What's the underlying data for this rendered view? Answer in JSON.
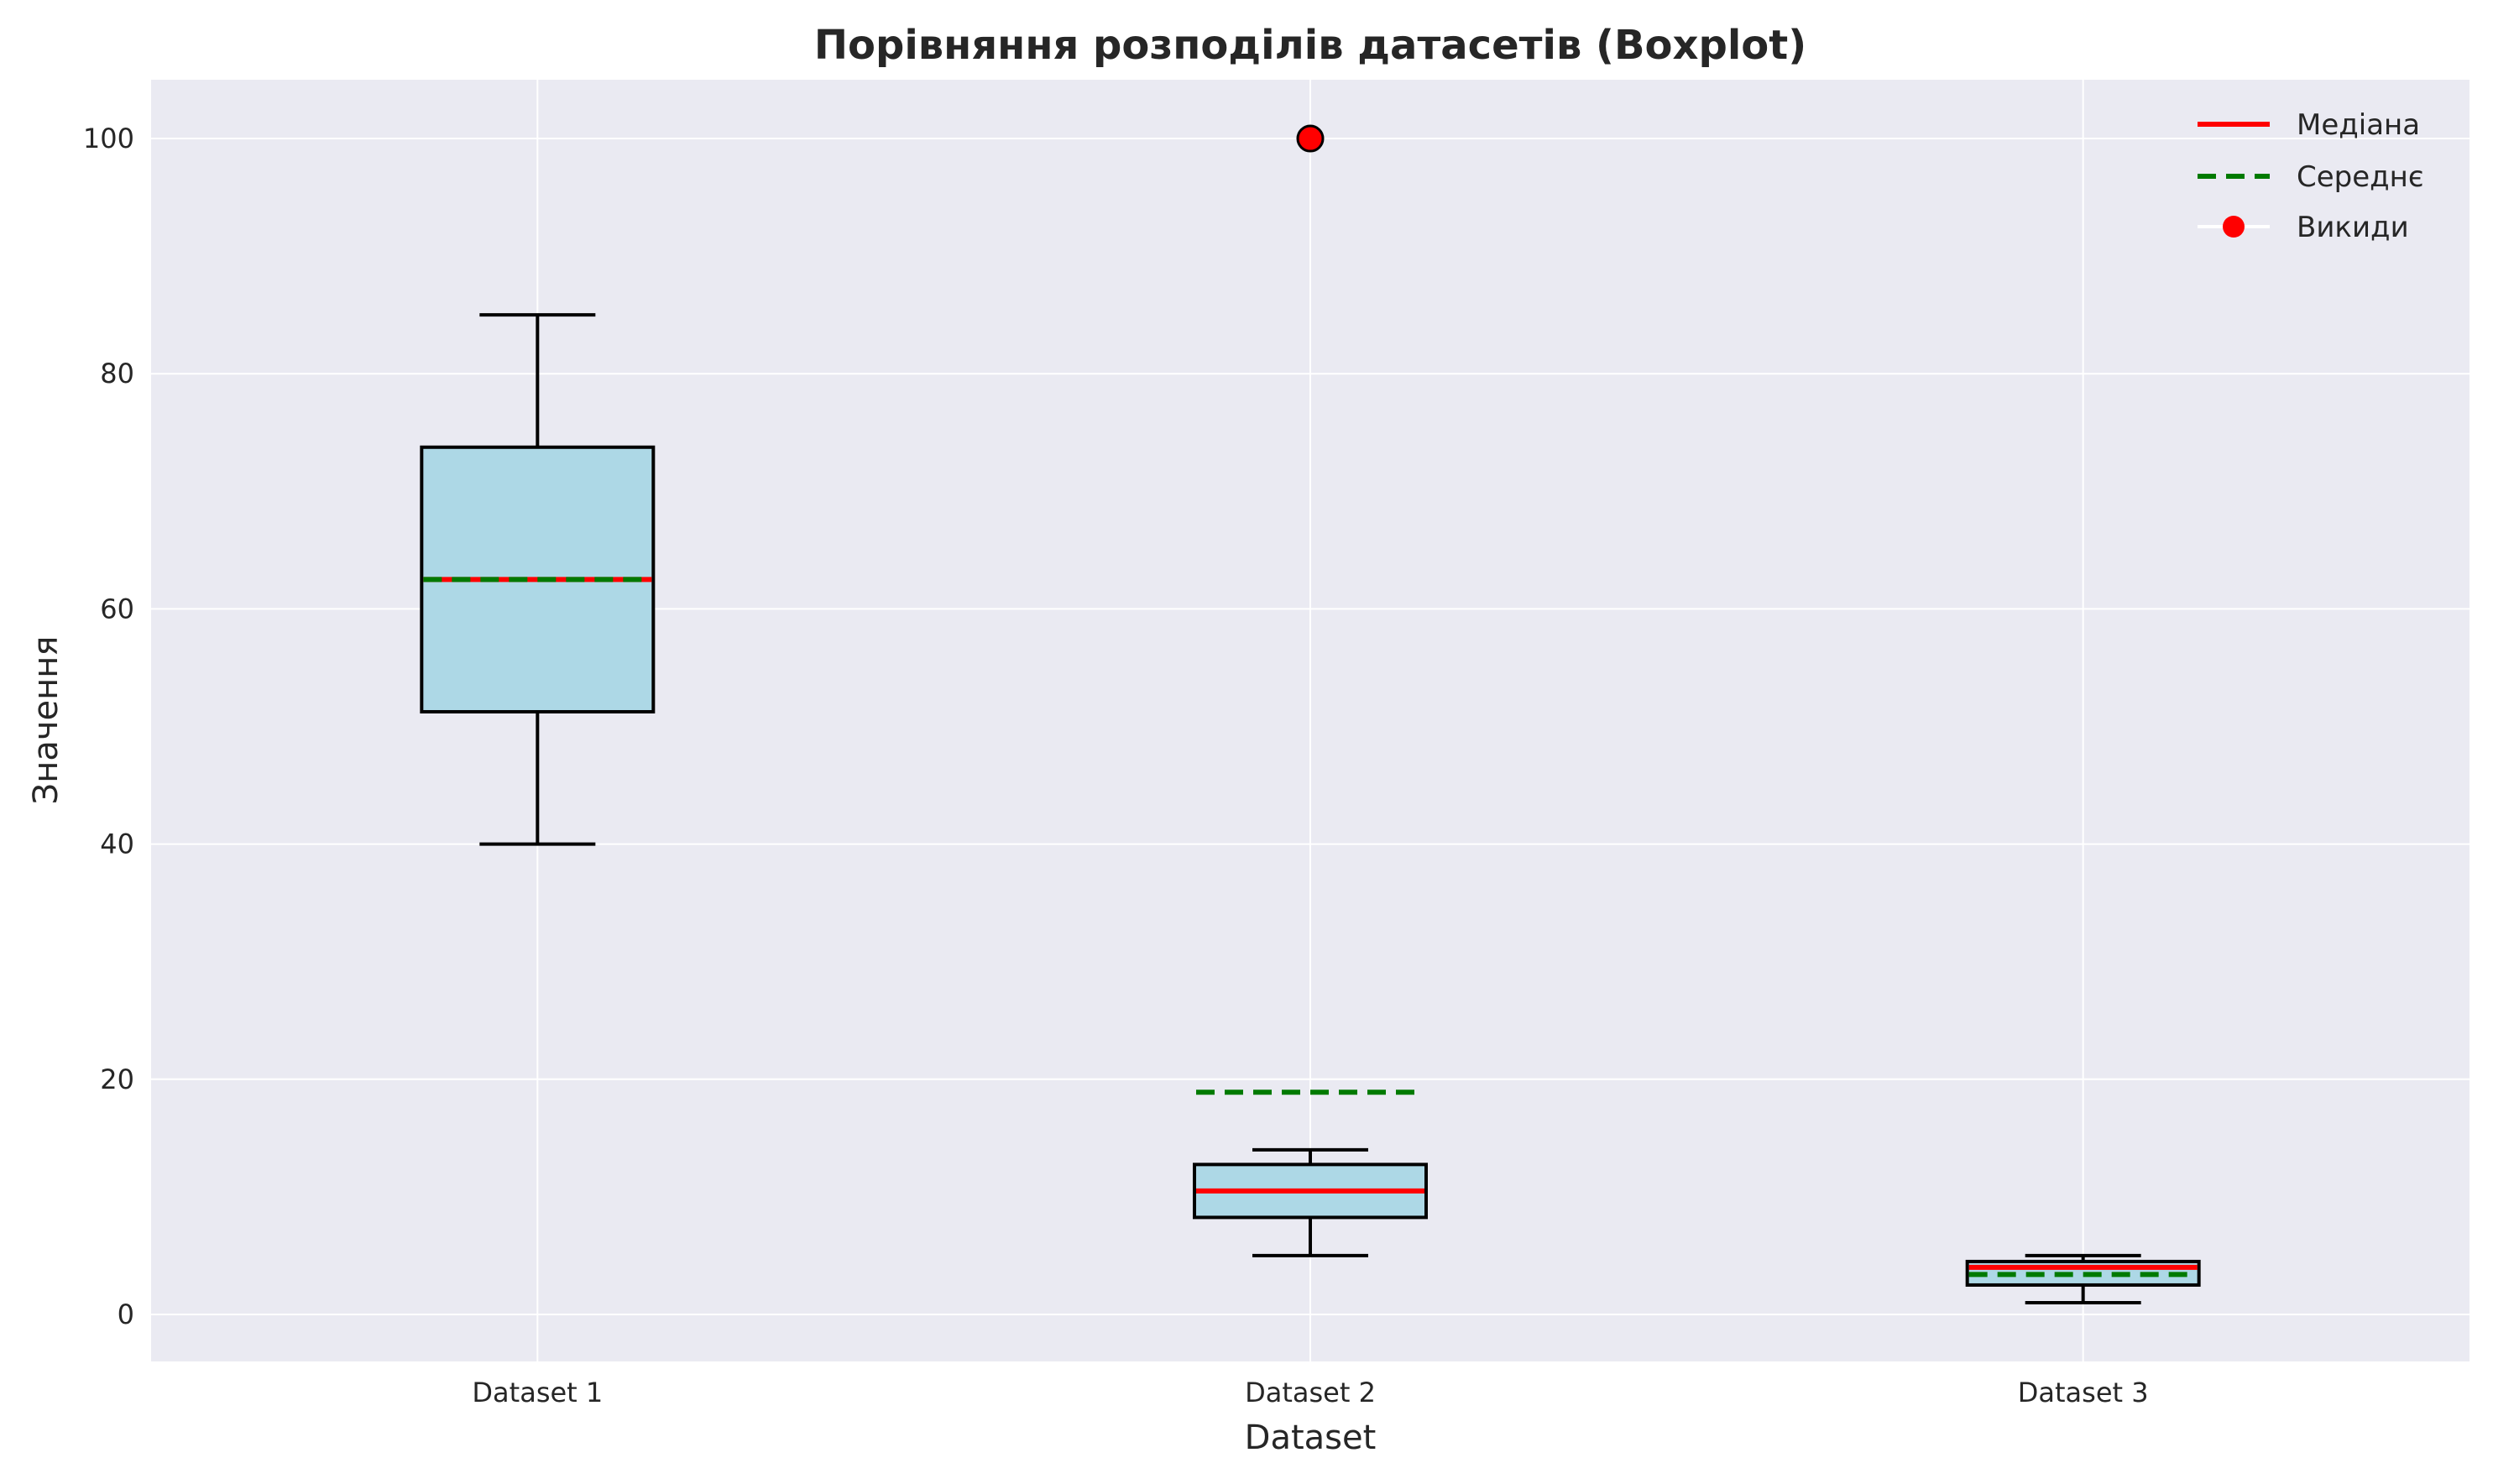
{
  "chart_data": {
    "type": "boxplot",
    "title": "Порівняння розподілів датасетів (Boxplot)",
    "xlabel": "Dataset",
    "ylabel": "Значення",
    "ylim": [
      -4,
      105
    ],
    "yticks": [
      0,
      20,
      40,
      60,
      80,
      100
    ],
    "grid": true,
    "legend_position": "top-right",
    "categories": [
      "Dataset 1",
      "Dataset 2",
      "Dataset 3"
    ],
    "boxes": [
      {
        "name": "Dataset 1",
        "whisker_low": 40,
        "q1": 51.25,
        "median": 62.5,
        "q3": 73.75,
        "whisker_high": 85,
        "mean": 62.5,
        "outliers": []
      },
      {
        "name": "Dataset 2",
        "whisker_low": 5,
        "q1": 8.25,
        "median": 10.5,
        "q3": 12.75,
        "whisker_high": 14,
        "mean": 18.9,
        "outliers": [
          100
        ]
      },
      {
        "name": "Dataset 3",
        "whisker_low": 1,
        "q1": 2.5,
        "median": 4,
        "q3": 4.5,
        "whisker_high": 5,
        "mean": 3.4,
        "outliers": []
      }
    ],
    "legend": [
      {
        "label": "Медіана",
        "style": "median"
      },
      {
        "label": "Середнє",
        "style": "mean"
      },
      {
        "label": "Викиди",
        "style": "outlier"
      }
    ],
    "colors": {
      "background": "#eaeaf2",
      "grid": "#ffffff",
      "box_fill": "#add8e6",
      "box_edge": "#000000",
      "median": "#ff0000",
      "mean": "#007a00",
      "outlier": "#ff0000"
    }
  }
}
